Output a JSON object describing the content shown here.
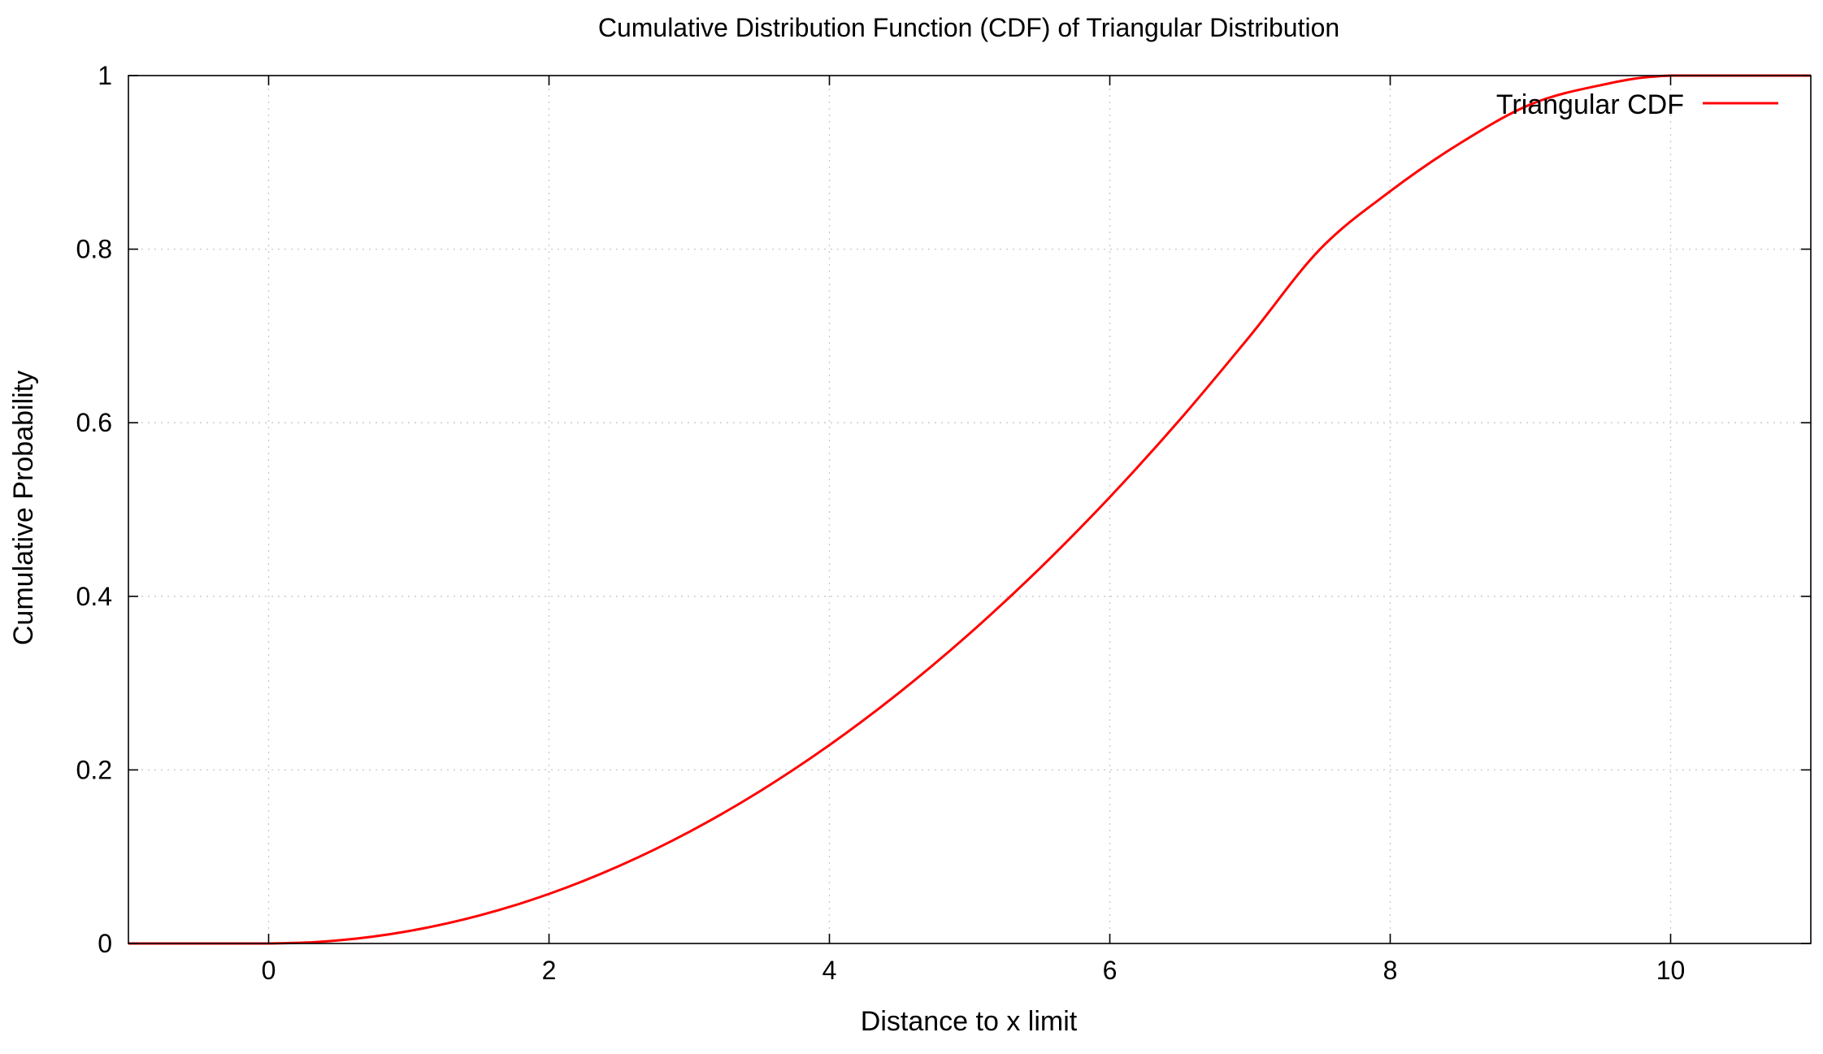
{
  "chart_data": {
    "type": "line",
    "title": "Cumulative Distribution Function (CDF) of Triangular Distribution",
    "xlabel": "Distance to x limit",
    "ylabel": "Cumulative Probability",
    "xlim": [
      -1,
      11
    ],
    "ylim": [
      0,
      1
    ],
    "xticks": [
      0,
      2,
      4,
      6,
      8,
      10
    ],
    "xtick_labels": [
      "0",
      "2",
      "4",
      "6",
      "8",
      "10"
    ],
    "yticks": [
      0,
      0.2,
      0.4,
      0.6,
      0.8,
      1
    ],
    "ytick_labels": [
      "0",
      "0.2",
      "0.4",
      "0.6",
      "0.8",
      "1"
    ],
    "grid": true,
    "legend_position": "top-right",
    "series": [
      {
        "name": "Triangular CDF",
        "color": "#ff0000",
        "x": [
          -1,
          0,
          0.5,
          1,
          1.5,
          2,
          2.5,
          3,
          3.5,
          4,
          4.5,
          5,
          5.5,
          6,
          6.5,
          7,
          7.5,
          8,
          8.5,
          9,
          9.5,
          10,
          11
        ],
        "y": [
          0,
          0,
          0.0036,
          0.0143,
          0.0321,
          0.0571,
          0.0893,
          0.1286,
          0.175,
          0.2286,
          0.2893,
          0.3571,
          0.4321,
          0.5143,
          0.6036,
          0.7,
          0.8,
          0.8667,
          0.9222,
          0.9667,
          0.9889,
          1,
          1
        ]
      }
    ]
  }
}
